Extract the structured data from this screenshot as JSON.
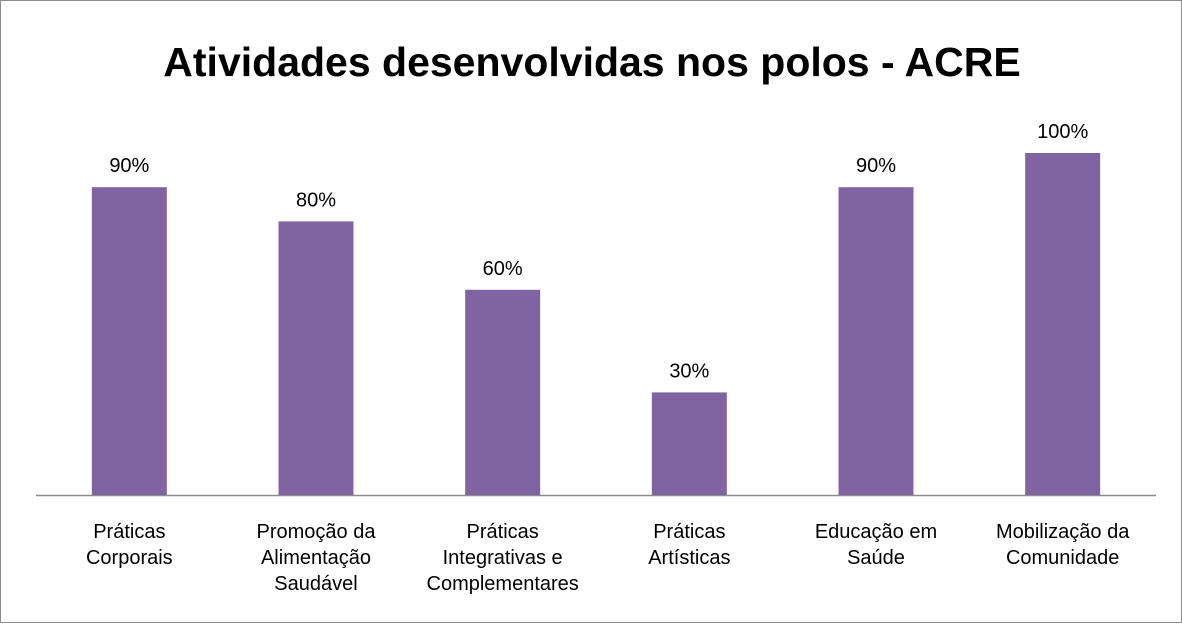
{
  "colors": {
    "bar": "#8064a2",
    "axis": "#8c8c8c",
    "text": "#000000"
  },
  "chart_data": {
    "type": "bar",
    "title": "Atividades desenvolvidas nos polos - ACRE",
    "xlabel": "",
    "ylabel": "",
    "ylim": [
      0,
      100
    ],
    "grid": false,
    "legend": "none",
    "value_suffix": "%",
    "categories": [
      [
        "Práticas",
        "Corporais"
      ],
      [
        "Promoção da",
        "Alimentação",
        "Saudável"
      ],
      [
        "Práticas",
        "Integrativas e",
        "Complementares"
      ],
      [
        "Práticas",
        "Artísticas"
      ],
      [
        "Educação em",
        "Saúde"
      ],
      [
        "Mobilização da",
        "Comunidade"
      ]
    ],
    "values": [
      90,
      80,
      60,
      30,
      90,
      100
    ],
    "data_labels": [
      "90%",
      "80%",
      "60%",
      "30%",
      "90%",
      "100%"
    ]
  }
}
